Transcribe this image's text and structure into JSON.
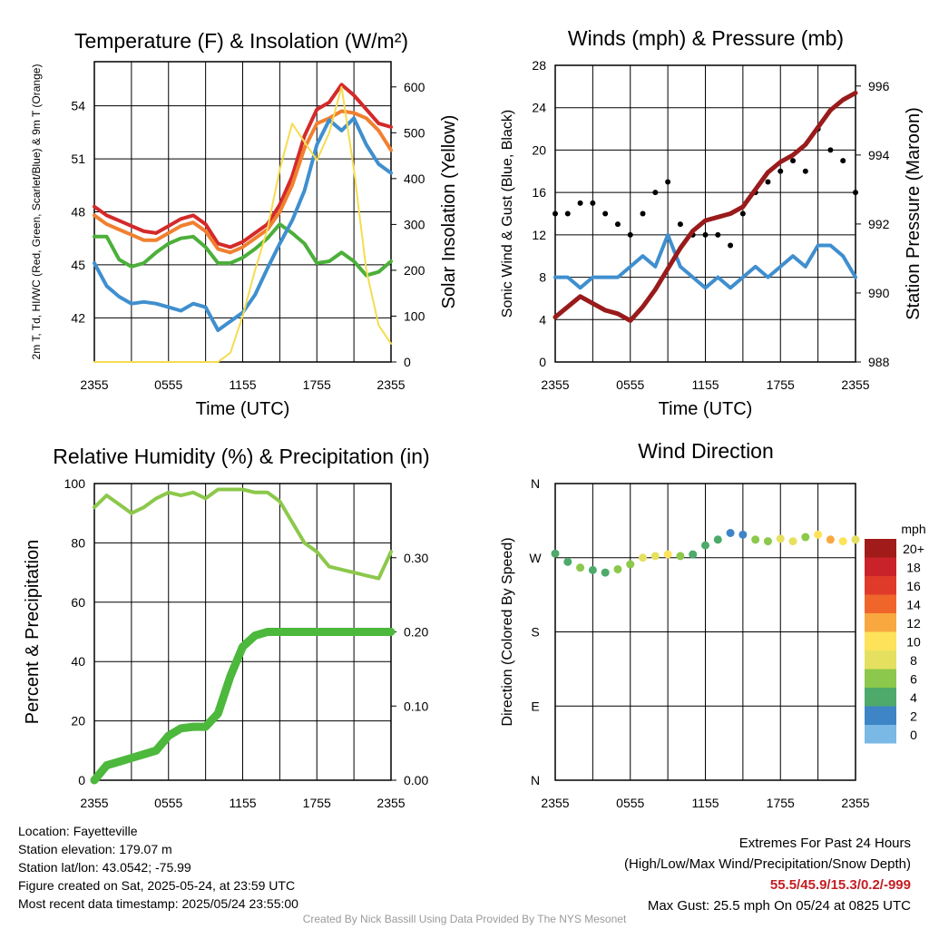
{
  "colors": {
    "red": "#d42a2a",
    "orange": "#f08030",
    "green": "#4caf3a",
    "blue": "#3f8fcf",
    "yellow": "#f5dc50",
    "maroon": "#991b1b",
    "black": "#000000",
    "rh": "#8cc84b",
    "precip": "#4cb83c"
  },
  "chart_data": [
    {
      "id": "temp",
      "type": "line",
      "title": "Temperature (F) & Insolation (W/m²)",
      "xlabel": "Time (UTC)",
      "ylabel": "2m T, Td, HI/WC (Red, Green, Scarlet/Blue) & 9m T (Orange)",
      "y2label": "Solar Insolation (Yellow)",
      "xticks": [
        "2355",
        "0555",
        "1155",
        "1755",
        "2355"
      ],
      "yticks": [
        42,
        45,
        48,
        51,
        54
      ],
      "y2ticks": [
        0,
        100,
        200,
        300,
        400,
        500,
        600
      ],
      "ylim": [
        39.5,
        56.5
      ],
      "y2lim": [
        0,
        655
      ],
      "x": [
        0,
        1,
        2,
        3,
        4,
        5,
        6,
        7,
        8,
        9,
        10,
        11,
        12,
        13,
        14,
        15,
        16,
        17,
        18,
        19,
        20,
        21,
        22,
        23,
        24
      ],
      "series": [
        {
          "color": "red",
          "axis": "y",
          "values": [
            48.3,
            47.8,
            47.5,
            47.2,
            46.9,
            46.8,
            47.2,
            47.6,
            47.8,
            47.3,
            46.2,
            46.0,
            46.3,
            46.8,
            47.3,
            48.4,
            50.0,
            52.3,
            53.8,
            54.2,
            55.2,
            54.6,
            53.8,
            53.0,
            52.8
          ]
        },
        {
          "color": "orange",
          "axis": "y",
          "values": [
            47.8,
            47.3,
            47.0,
            46.7,
            46.4,
            46.4,
            46.8,
            47.2,
            47.4,
            46.9,
            45.9,
            45.7,
            46.0,
            46.5,
            47.0,
            48.0,
            49.5,
            51.6,
            53.0,
            53.3,
            53.7,
            53.6,
            53.3,
            52.6,
            51.5
          ]
        },
        {
          "color": "green",
          "axis": "y",
          "values": [
            46.6,
            46.6,
            45.3,
            44.9,
            45.1,
            45.7,
            46.2,
            46.5,
            46.6,
            46.0,
            45.1,
            45.1,
            45.4,
            45.9,
            46.5,
            47.3,
            46.8,
            46.2,
            45.1,
            45.2,
            45.7,
            45.2,
            44.4,
            44.6,
            45.2
          ]
        },
        {
          "color": "blue",
          "axis": "y",
          "values": [
            45.1,
            43.8,
            43.2,
            42.8,
            42.9,
            42.8,
            42.6,
            42.4,
            42.8,
            42.6,
            41.3,
            41.8,
            42.3,
            43.3,
            44.8,
            46.2,
            47.5,
            49.2,
            51.8,
            53.2,
            52.6,
            53.3,
            51.8,
            50.7,
            50.2
          ]
        },
        {
          "color": "yellow",
          "axis": "y2",
          "values": [
            0,
            0,
            0,
            0,
            0,
            0,
            0,
            0,
            0,
            0,
            0,
            20,
            100,
            200,
            290,
            420,
            520,
            480,
            440,
            500,
            600,
            420,
            200,
            80,
            40
          ]
        }
      ]
    },
    {
      "id": "wind",
      "type": "line",
      "title": "Winds (mph) & Pressure (mb)",
      "xlabel": "Time (UTC)",
      "ylabel": "Sonic Wind & Gust (Blue, Black)",
      "y2label": "Station Pressure (Maroon)",
      "xticks": [
        "2355",
        "0555",
        "1155",
        "1755",
        "2355"
      ],
      "yticks": [
        0,
        4,
        8,
        12,
        16,
        20,
        24,
        28
      ],
      "y2ticks": [
        988,
        990,
        992,
        994,
        996
      ],
      "ylim": [
        0,
        28
      ],
      "y2lim": [
        988,
        996.6
      ],
      "x": [
        0,
        1,
        2,
        3,
        4,
        5,
        6,
        7,
        8,
        9,
        10,
        11,
        12,
        13,
        14,
        15,
        16,
        17,
        18,
        19,
        20,
        21,
        22,
        23,
        24
      ],
      "series": [
        {
          "color": "blue",
          "axis": "y",
          "values": [
            8,
            8,
            7,
            8,
            8,
            8,
            9,
            10,
            9,
            12,
            9,
            8,
            7,
            8,
            7,
            8,
            9,
            8,
            9,
            10,
            9,
            11,
            11,
            10,
            8
          ]
        },
        {
          "color": "black",
          "axis": "y",
          "values": [
            14,
            14,
            15,
            15,
            14,
            13,
            12,
            14,
            16,
            17,
            13,
            12,
            12,
            12,
            11,
            14,
            16,
            17,
            18,
            19,
            18,
            22,
            20,
            19,
            16
          ]
        },
        {
          "color": "maroon",
          "axis": "y2",
          "values": [
            989.3,
            989.6,
            989.9,
            989.7,
            989.5,
            989.4,
            989.2,
            989.6,
            990.1,
            990.7,
            991.3,
            991.8,
            992.1,
            992.2,
            992.3,
            992.5,
            993.0,
            993.5,
            993.8,
            994.0,
            994.3,
            994.8,
            995.3,
            995.6,
            995.8
          ]
        }
      ]
    },
    {
      "id": "rh",
      "type": "line",
      "title": "Relative Humidity (%) & Precipitation (in)",
      "ylabel": "Percent & Precipitation",
      "xticks": [
        "2355",
        "0555",
        "1155",
        "1755",
        "2355"
      ],
      "yticks": [
        0,
        20,
        40,
        60,
        80,
        100
      ],
      "y2ticks": [
        "0.00",
        "0.10",
        "0.20",
        "0.30"
      ],
      "ylim": [
        0,
        100
      ],
      "y2lim": [
        0,
        0.4
      ],
      "x": [
        0,
        1,
        2,
        3,
        4,
        5,
        6,
        7,
        8,
        9,
        10,
        11,
        12,
        13,
        14,
        15,
        16,
        17,
        18,
        19,
        20,
        21,
        22,
        23,
        24
      ],
      "series": [
        {
          "color": "rh",
          "axis": "y",
          "values": [
            92,
            96,
            93,
            90,
            92,
            95,
            97,
            96,
            97,
            95,
            98,
            98,
            98,
            97,
            97,
            94,
            87,
            80,
            77,
            72,
            71,
            70,
            69,
            68,
            77
          ]
        },
        {
          "color": "precip",
          "axis": "y2",
          "values": [
            0.0,
            0.02,
            0.025,
            0.03,
            0.035,
            0.04,
            0.06,
            0.07,
            0.072,
            0.072,
            0.09,
            0.14,
            0.18,
            0.195,
            0.2,
            0.2,
            0.2,
            0.2,
            0.2,
            0.2,
            0.2,
            0.2,
            0.2,
            0.2,
            0.2
          ]
        }
      ]
    },
    {
      "id": "dir",
      "type": "scatter",
      "title": "Wind Direction",
      "ylabel": "Direction (Colored By Speed)",
      "xticks": [
        "2355",
        "0555",
        "1155",
        "1755",
        "2355"
      ],
      "yticks": [
        "N",
        "E",
        "S",
        "W",
        "N"
      ],
      "ylim": [
        0,
        360
      ],
      "x": [
        0,
        1,
        2,
        3,
        4,
        5,
        6,
        7,
        8,
        9,
        10,
        11,
        12,
        13,
        14,
        15,
        16,
        17,
        18,
        19,
        20,
        21,
        22,
        23,
        24
      ],
      "values": [
        275,
        265,
        258,
        255,
        252,
        256,
        262,
        270,
        272,
        274,
        272,
        274,
        285,
        292,
        300,
        298,
        292,
        290,
        293,
        290,
        295,
        298,
        292,
        290,
        292
      ],
      "speeds": [
        7,
        7,
        8,
        6,
        7,
        8,
        8,
        10,
        10,
        12,
        9,
        7,
        7,
        6,
        4,
        4,
        9,
        8,
        10,
        11,
        9,
        12,
        14,
        13,
        11
      ],
      "colorbar": {
        "title": "mph",
        "labels": [
          "20+",
          "18",
          "16",
          "14",
          "12",
          "10",
          "8",
          "6",
          "4",
          "2",
          "0"
        ],
        "colors": [
          "#a11b1b",
          "#c9222a",
          "#e03a2a",
          "#f0662a",
          "#f8a83f",
          "#fde25a",
          "#e6e060",
          "#8cc84b",
          "#4daa6a",
          "#3e85c6",
          "#7ab8e6",
          "#bde2f7"
        ]
      }
    }
  ],
  "info": {
    "location": "Location: Fayetteville",
    "elevation": "Station elevation: 179.07 m",
    "latlon": "Station lat/lon: 43.0542; -75.99",
    "created": "Figure created on Sat, 2025-05-24, at 23:59 UTC",
    "recent": "Most recent data timestamp: 2025/05/24 23:55:00"
  },
  "extremes": {
    "title": "Extremes For Past 24 Hours",
    "subtitle": "(High/Low/Max Wind/Precipitation/Snow Depth)",
    "values": "55.5/45.9/15.3/0.2/-999",
    "gust": "Max Gust: 25.5 mph On 05/24 at 0825 UTC"
  },
  "credit": "Created By Nick Bassill Using Data Provided By The NYS Mesonet"
}
